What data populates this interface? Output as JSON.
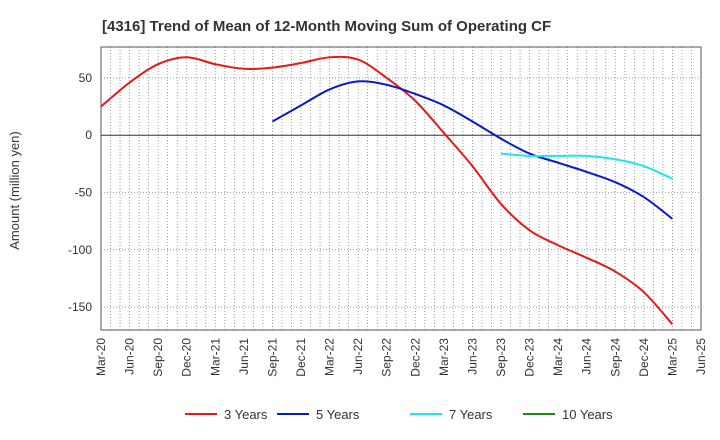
{
  "chart_data": {
    "type": "line",
    "title": "[4316]  Trend of Mean of 12-Month Moving Sum of Operating CF",
    "xlabel": "",
    "ylabel": "Amount (million yen)",
    "ylim": [
      -170,
      77
    ],
    "yticks": [
      50,
      0,
      -50,
      -100,
      -150
    ],
    "grid": true,
    "legend_position": "bottom",
    "x_tick_labels": [
      "Mar-20",
      "Jun-20",
      "Sep-20",
      "Dec-20",
      "Mar-21",
      "Jun-21",
      "Sep-21",
      "Dec-21",
      "Mar-22",
      "Jun-22",
      "Sep-22",
      "Dec-22",
      "Mar-23",
      "Jun-23",
      "Sep-23",
      "Dec-23",
      "Mar-24",
      "Jun-24",
      "Sep-24",
      "Dec-24",
      "Mar-25",
      "Jun-25"
    ],
    "series": [
      {
        "name": "3 Years",
        "color": "#e31a1c",
        "x": [
          "Mar-20",
          "Jun-20",
          "Sep-20",
          "Dec-20",
          "Mar-21",
          "Jun-21",
          "Sep-21",
          "Dec-21",
          "Mar-22",
          "Jun-22",
          "Sep-22",
          "Dec-22",
          "Mar-23",
          "Jun-23",
          "Sep-23",
          "Dec-23",
          "Mar-24",
          "Jun-24",
          "Sep-24",
          "Dec-24",
          "Mar-25"
        ],
        "values": [
          25,
          46,
          62,
          68,
          62,
          58,
          59,
          63,
          68,
          66,
          50,
          30,
          2,
          -27,
          -60,
          -83,
          -96,
          -107,
          -119,
          -137,
          -165
        ]
      },
      {
        "name": "5 Years",
        "color": "#0a19c9",
        "x": [
          "Sep-21",
          "Dec-21",
          "Mar-22",
          "Jun-22",
          "Sep-22",
          "Dec-22",
          "Mar-23",
          "Jun-23",
          "Sep-23",
          "Dec-23",
          "Mar-24",
          "Jun-24",
          "Sep-24",
          "Dec-24",
          "Mar-25"
        ],
        "values": [
          12,
          26,
          40,
          47,
          44,
          36,
          26,
          12,
          -3,
          -16,
          -24,
          -32,
          -41,
          -54,
          -73
        ]
      },
      {
        "name": "7 Years",
        "color": "#1ee6e6",
        "x": [
          "Sep-23",
          "Dec-23",
          "Mar-24",
          "Jun-24",
          "Sep-24",
          "Dec-24",
          "Mar-25"
        ],
        "values": [
          -16,
          -18,
          -18,
          -18,
          -21,
          -27,
          -38
        ]
      },
      {
        "name": "10 Years",
        "color": "#1a8a1a",
        "x": [],
        "values": []
      }
    ]
  }
}
